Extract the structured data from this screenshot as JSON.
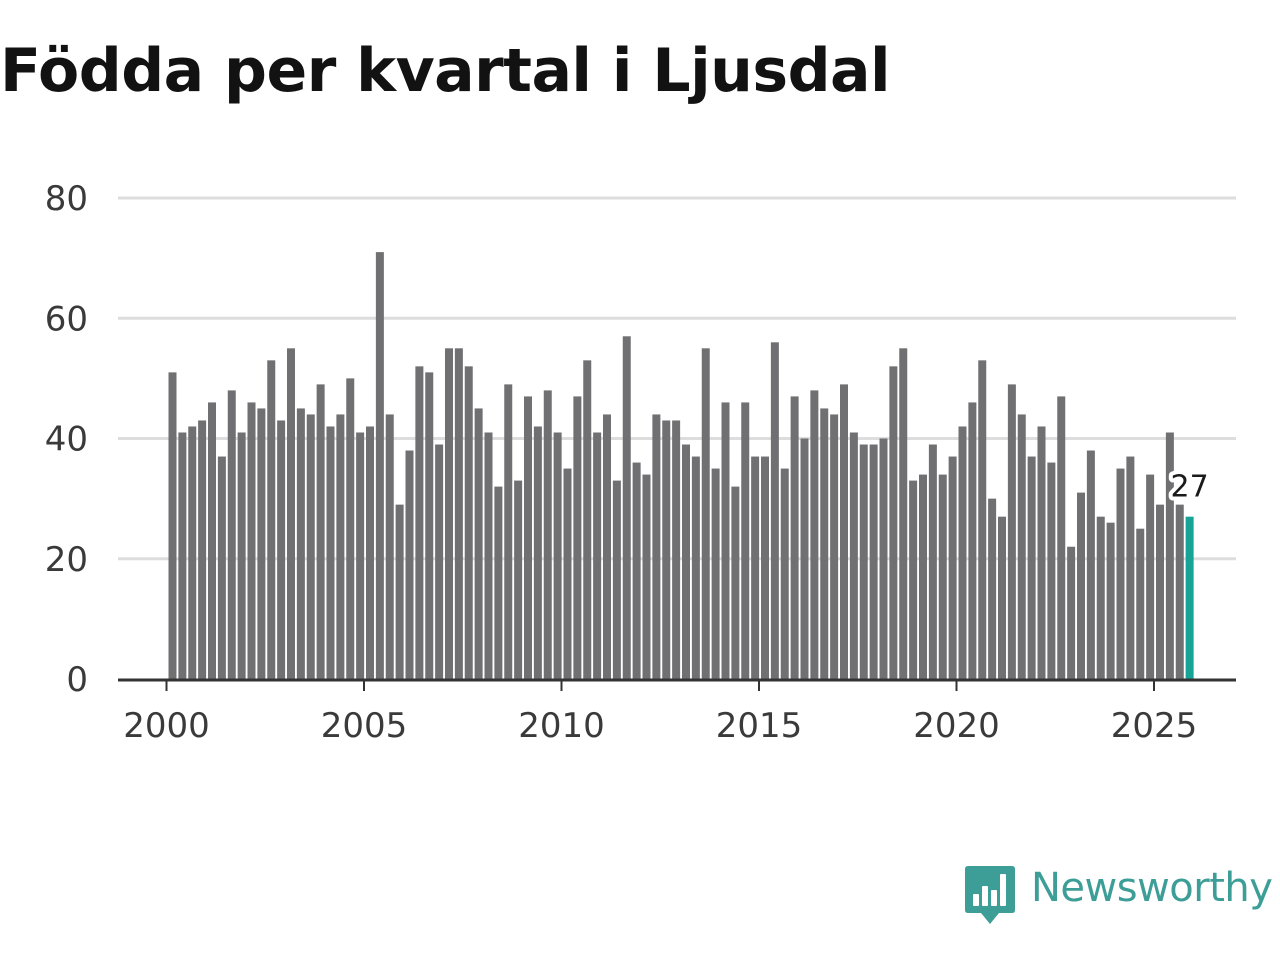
{
  "title": "Födda per kvartal i Ljusdal",
  "brand": {
    "name": "Newsworthy",
    "logo_icon": "newsworthy-logo-icon"
  },
  "colors": {
    "bar": "#707073",
    "highlight": "#18a397",
    "gridline": "#dddddd",
    "axis": "#333333",
    "title": "#121212",
    "brand": "#3d9e98"
  },
  "chart_data": {
    "type": "bar",
    "title": "Födda per kvartal i Ljusdal",
    "xlabel": "",
    "ylabel": "",
    "ylim": [
      0,
      80
    ],
    "yticks": [
      0,
      20,
      40,
      60,
      80
    ],
    "xticks": [
      "2000",
      "2005",
      "2010",
      "2015",
      "2020",
      "2025"
    ],
    "grid": true,
    "categories": [
      "2000 K1",
      "2000 K2",
      "2000 K3",
      "2000 K4",
      "2001 K1",
      "2001 K2",
      "2001 K3",
      "2001 K4",
      "2002 K1",
      "2002 K2",
      "2002 K3",
      "2002 K4",
      "2003 K1",
      "2003 K2",
      "2003 K3",
      "2003 K4",
      "2004 K1",
      "2004 K2",
      "2004 K3",
      "2004 K4",
      "2005 K1",
      "2005 K2",
      "2005 K3",
      "2005 K4",
      "2006 K1",
      "2006 K2",
      "2006 K3",
      "2006 K4",
      "2007 K1",
      "2007 K2",
      "2007 K3",
      "2007 K4",
      "2008 K1",
      "2008 K2",
      "2008 K3",
      "2008 K4",
      "2009 K1",
      "2009 K2",
      "2009 K3",
      "2009 K4",
      "2010 K1",
      "2010 K2",
      "2010 K3",
      "2010 K4",
      "2011 K1",
      "2011 K2",
      "2011 K3",
      "2011 K4",
      "2012 K1",
      "2012 K2",
      "2012 K3",
      "2012 K4",
      "2013 K1",
      "2013 K2",
      "2013 K3",
      "2013 K4",
      "2014 K1",
      "2014 K2",
      "2014 K3",
      "2014 K4",
      "2015 K1",
      "2015 K2",
      "2015 K3",
      "2015 K4",
      "2016 K1",
      "2016 K2",
      "2016 K3",
      "2016 K4",
      "2017 K1",
      "2017 K2",
      "2017 K3",
      "2017 K4",
      "2018 K1",
      "2018 K2",
      "2018 K3",
      "2018 K4",
      "2019 K1",
      "2019 K2",
      "2019 K3",
      "2019 K4",
      "2020 K1",
      "2020 K2",
      "2020 K3",
      "2020 K4",
      "2021 K1",
      "2021 K2",
      "2021 K3",
      "2021 K4",
      "2022 K1",
      "2022 K2",
      "2022 K3",
      "2022 K4",
      "2023 K1",
      "2023 K2",
      "2023 K3",
      "2023 K4",
      "2024 K1",
      "2024 K2",
      "2024 K3",
      "2024 K4",
      "2025 K1",
      "2025 K2",
      "2025 K3",
      "2025 K4"
    ],
    "values": [
      51,
      41,
      42,
      43,
      46,
      37,
      48,
      41,
      46,
      45,
      53,
      43,
      55,
      45,
      44,
      49,
      42,
      44,
      50,
      41,
      42,
      71,
      44,
      29,
      38,
      52,
      51,
      39,
      55,
      55,
      52,
      45,
      41,
      32,
      49,
      33,
      47,
      42,
      48,
      41,
      35,
      47,
      53,
      41,
      44,
      33,
      57,
      36,
      34,
      44,
      43,
      43,
      39,
      37,
      55,
      35,
      46,
      32,
      46,
      37,
      37,
      56,
      35,
      47,
      40,
      48,
      45,
      44,
      49,
      41,
      39,
      39,
      40,
      52,
      55,
      33,
      34,
      39,
      34,
      37,
      42,
      46,
      53,
      30,
      27,
      49,
      44,
      37,
      42,
      36,
      47,
      22,
      31,
      38,
      27,
      26,
      35,
      37,
      25,
      34,
      29,
      41,
      29,
      27
    ],
    "highlight_index": 103,
    "highlight_label": "27",
    "notes": "Bar index 101 (2025 K2) is drawn with a white gap where the value label of the last bar overlaps it."
  }
}
